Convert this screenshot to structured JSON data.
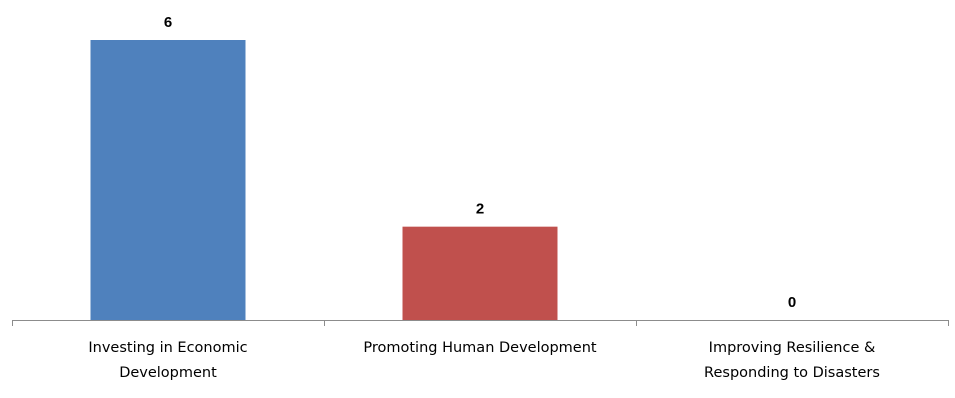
{
  "chart_data": {
    "type": "bar",
    "categories": [
      [
        "Investing in Economic",
        "Development"
      ],
      [
        "Promoting Human Development"
      ],
      [
        "Improving Resilience &",
        "Responding to Disasters"
      ]
    ],
    "values": [
      6,
      2,
      0
    ],
    "data_labels": [
      "6",
      "2",
      "0"
    ],
    "bar_colors": [
      "#4f81bd",
      "#c0504d",
      "#9bbb59"
    ],
    "title": "",
    "xlabel": "",
    "ylabel": "",
    "ylim": [
      0,
      6
    ],
    "grid": false,
    "legend": "none"
  }
}
